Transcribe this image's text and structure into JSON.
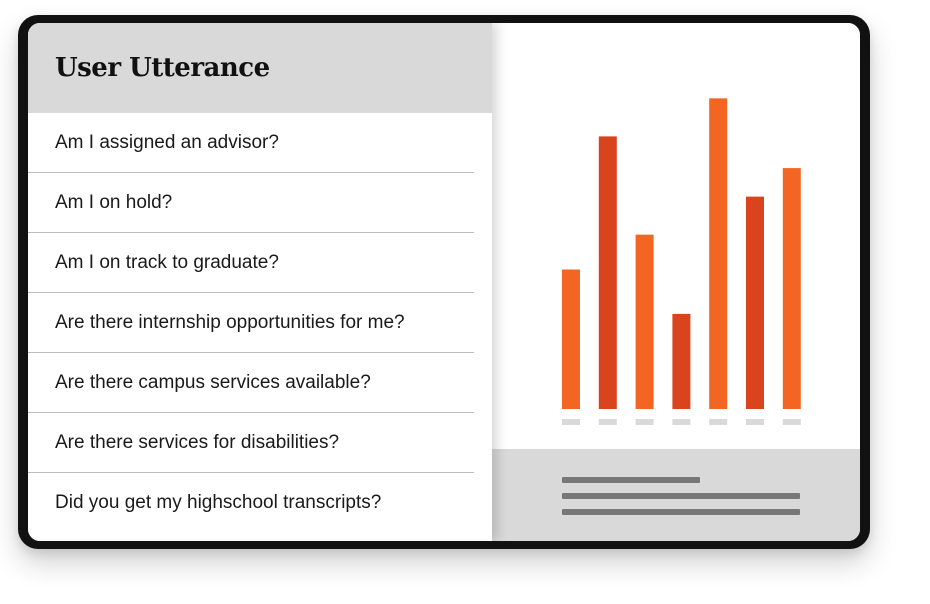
{
  "panel": {
    "title": "User Utterance",
    "utterances": [
      "Am I assigned an advisor?",
      "Am I on hold?",
      "Am I on track to graduate?",
      "Are there internship opportunities for me?",
      "Are there campus services available?",
      "Are there services for disabilities?",
      "Did you get my highschool transcripts?"
    ]
  },
  "colors": {
    "bar_light": "#f26522",
    "bar_dark": "#d9441f",
    "baseline": "#d9d9d9",
    "footer_bg": "#d9d9d9",
    "footer_line": "#777777"
  },
  "chart_data": {
    "type": "bar",
    "title": "",
    "xlabel": "",
    "ylabel": "",
    "categories": [
      "",
      "",
      "",
      "",
      "",
      "",
      ""
    ],
    "values": [
      44,
      86,
      55,
      30,
      98,
      67,
      76
    ],
    "ylim": [
      0,
      100
    ],
    "grid": false
  }
}
